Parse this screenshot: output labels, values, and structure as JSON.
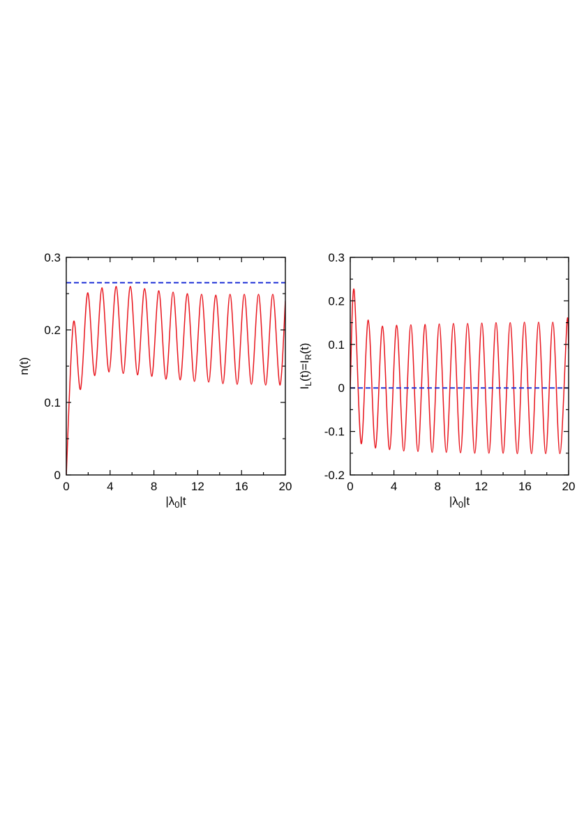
{
  "colors": {
    "series_oscillating": "#e8141c",
    "series_steady": "#2234d6",
    "axes": "#000000"
  },
  "chart_data": [
    {
      "type": "line",
      "xlabel": "|λ0|t",
      "ylabel": "n(t)",
      "xlim": [
        0,
        20
      ],
      "ylim": [
        0,
        0.3
      ],
      "xticks": [
        0,
        4,
        8,
        12,
        16,
        20
      ],
      "xtick_labels": [
        "0",
        "4",
        "8",
        "12",
        "16",
        "20"
      ],
      "xticks_minor": [
        2,
        6,
        10,
        14,
        18
      ],
      "yticks": [
        0,
        0.1,
        0.2,
        0.3
      ],
      "ytick_labels": [
        "0",
        "0.1",
        "0.2",
        "0.3"
      ],
      "yticks_minor": [
        0.05,
        0.15,
        0.25
      ],
      "grid": false,
      "series": [
        {
          "style": "solid",
          "color": "#e8141c",
          "x": [
            0,
            0.65,
            1.3,
            1.95,
            2.6,
            3.25,
            3.9,
            4.55,
            5.2,
            5.85,
            6.5,
            7.15,
            7.8,
            8.45,
            9.1,
            9.75,
            10.4,
            11.05,
            11.7,
            12.35,
            13.0,
            13.65,
            14.3,
            14.95,
            15.6,
            16.25,
            16.9,
            17.55,
            18.2,
            18.85,
            19.5,
            20.0
          ],
          "y": [
            0,
            0.21,
            0.118,
            0.251,
            0.137,
            0.258,
            0.142,
            0.26,
            0.14,
            0.26,
            0.138,
            0.257,
            0.136,
            0.254,
            0.132,
            0.252,
            0.131,
            0.25,
            0.129,
            0.249,
            0.128,
            0.248,
            0.126,
            0.249,
            0.125,
            0.249,
            0.125,
            0.249,
            0.124,
            0.249,
            0.124,
            0.24
          ]
        },
        {
          "style": "dashed",
          "color": "#2234d6",
          "x": [
            0,
            20
          ],
          "y": [
            0.265,
            0.265
          ]
        }
      ]
    },
    {
      "type": "line",
      "xlabel": "|λ0|t",
      "ylabel_parts": [
        "I",
        "L",
        "(t)=I",
        "R",
        "(t)"
      ],
      "xlim": [
        0,
        20
      ],
      "ylim": [
        -0.2,
        0.3
      ],
      "xticks": [
        0,
        4,
        8,
        12,
        16,
        20
      ],
      "xtick_labels": [
        "0",
        "4",
        "8",
        "12",
        "16",
        "20"
      ],
      "xticks_minor": [
        2,
        6,
        10,
        14,
        18
      ],
      "yticks": [
        -0.2,
        -0.1,
        0,
        0.1,
        0.2,
        0.3
      ],
      "ytick_labels": [
        "-0.2",
        "-0.1",
        "0",
        "0.1",
        "0.2",
        "0.3"
      ],
      "yticks_minor": [
        -0.15,
        -0.05,
        0.05,
        0.15,
        0.25
      ],
      "grid": false,
      "series": [
        {
          "style": "solid",
          "color": "#e8141c",
          "x": [
            0,
            0.35,
            1.0,
            1.65,
            2.3,
            2.95,
            3.6,
            4.25,
            4.9,
            5.55,
            6.2,
            6.85,
            7.5,
            8.15,
            8.8,
            9.45,
            10.1,
            10.75,
            11.4,
            12.05,
            12.7,
            13.35,
            14.0,
            14.65,
            15.3,
            15.95,
            16.6,
            17.25,
            17.9,
            18.55,
            19.2,
            19.85,
            20.0
          ],
          "y": [
            0,
            0.226,
            -0.128,
            0.156,
            -0.138,
            0.142,
            -0.142,
            0.144,
            -0.145,
            0.145,
            -0.146,
            0.146,
            -0.148,
            0.147,
            -0.148,
            0.148,
            -0.149,
            0.148,
            -0.15,
            0.149,
            -0.15,
            0.15,
            -0.15,
            0.15,
            -0.151,
            0.151,
            -0.151,
            0.151,
            -0.151,
            0.151,
            -0.151,
            0.151,
            0.09
          ]
        },
        {
          "style": "dashed",
          "color": "#2234d6",
          "x": [
            0,
            20
          ],
          "y": [
            0,
            0
          ]
        }
      ]
    }
  ]
}
